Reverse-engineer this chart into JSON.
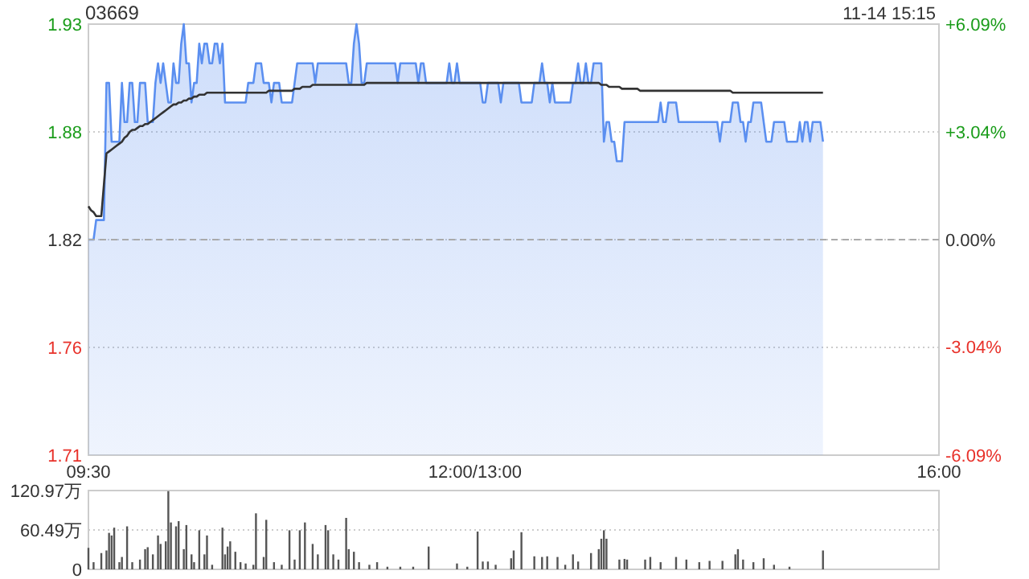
{
  "chart_data": [
    {
      "type": "area",
      "title": "03669",
      "annotations": [
        "11-14 15:15"
      ],
      "categories": [
        "09:30",
        null,
        null,
        null,
        null,
        null,
        null,
        null,
        null,
        null,
        null,
        null,
        null,
        null,
        null,
        null,
        null,
        null,
        null,
        null,
        null,
        null,
        null,
        null,
        null,
        null,
        null,
        null,
        null,
        null,
        null,
        null,
        null,
        null,
        null,
        null,
        null,
        null,
        null,
        null,
        null,
        null,
        null,
        null,
        null,
        null,
        null,
        null,
        null,
        null,
        null,
        null,
        null,
        null,
        null,
        null,
        null,
        null,
        null,
        null,
        null,
        null,
        null,
        null,
        null,
        null,
        null,
        null,
        null,
        null,
        null,
        null,
        null,
        null,
        null,
        null,
        null,
        null,
        null,
        null,
        null,
        null,
        null,
        null,
        null,
        null,
        null,
        null,
        null,
        null,
        null,
        null,
        null,
        null,
        null,
        null,
        null,
        null,
        null,
        null,
        null,
        null,
        null,
        null,
        null,
        null,
        null,
        null,
        null,
        null,
        null,
        null,
        null,
        null,
        null,
        null,
        null,
        null,
        null,
        null,
        null,
        null,
        null,
        null,
        null,
        null,
        null,
        null,
        null,
        null,
        null,
        null,
        null,
        null,
        null,
        null,
        null,
        null,
        null,
        null,
        null,
        null,
        null,
        null,
        null,
        null,
        null,
        null,
        null,
        null,
        "12:00/13:00",
        null,
        null,
        null,
        null,
        null,
        null,
        null,
        null,
        null,
        null,
        null,
        null,
        null,
        null,
        null,
        null,
        null,
        null,
        null,
        null,
        null,
        null,
        null,
        null,
        null,
        null,
        null,
        null,
        null,
        null,
        null,
        null,
        null,
        null,
        null,
        null,
        null,
        null,
        null,
        null,
        null,
        null,
        null,
        null,
        null,
        null,
        null,
        null,
        null,
        null,
        null,
        null,
        null,
        null,
        null,
        null,
        null,
        null,
        null,
        null,
        null,
        null,
        null,
        null,
        null,
        null,
        null,
        null,
        null,
        null,
        null,
        null,
        null,
        null,
        null,
        null,
        null,
        null,
        null,
        null,
        null,
        null,
        null,
        null,
        null,
        null,
        null,
        null,
        null,
        null,
        null,
        null,
        null,
        null,
        null,
        null,
        null,
        null,
        null,
        null,
        null,
        null,
        null,
        null,
        null,
        null,
        null,
        null,
        null,
        null,
        null,
        null,
        null,
        null,
        null,
        null,
        null,
        null,
        null,
        null,
        null,
        null,
        null,
        null,
        null,
        null,
        null,
        null,
        null,
        null,
        null,
        null,
        null,
        null,
        null,
        null,
        null,
        null,
        null,
        null,
        null,
        null,
        null,
        null,
        null,
        null,
        null,
        null,
        null,
        null,
        null,
        null,
        null,
        null,
        null,
        null,
        null,
        null,
        null,
        null,
        null,
        null,
        null,
        null,
        null,
        null,
        null,
        null,
        null,
        null,
        null,
        null,
        null,
        null,
        null,
        null,
        null,
        null,
        null,
        "16:00"
      ],
      "ylim": [
        1.71,
        1.93
      ],
      "yticks": [
        {
          "value": 1.71,
          "label": "1.71"
        },
        {
          "value": 1.765,
          "label": "1.76"
        },
        {
          "value": 1.82,
          "label": "1.82"
        },
        {
          "value": 1.875,
          "label": "1.88"
        },
        {
          "value": 1.93,
          "label": "1.93"
        }
      ],
      "y2lim": [
        -6.09,
        6.09
      ],
      "y2ticks": [
        {
          "value": -6.09,
          "label": "-6.09%"
        },
        {
          "value": -3.04,
          "label": "-3.04%"
        },
        {
          "value": 0,
          "label": "0.00%"
        },
        {
          "value": 3.04,
          "label": "+3.04%"
        },
        {
          "value": 6.09,
          "label": "+6.09%"
        }
      ],
      "grid": "y",
      "ref_lines": [
        {
          "axis": "y",
          "value": 1.82,
          "line_style": "dashed",
          "color": "#aaaaaa"
        }
      ],
      "series": [
        {
          "color": "#5b8ff0",
          "values": [
            1.82,
            1.82,
            1.82,
            1.83,
            1.83,
            1.83,
            1.83,
            1.9,
            1.9,
            1.87,
            1.87,
            1.87,
            1.87,
            1.9,
            1.88,
            1.88,
            1.9,
            1.9,
            1.88,
            1.88,
            1.9,
            1.9,
            1.9,
            1.88,
            1.88,
            1.88,
            1.9,
            1.91,
            1.9,
            1.91,
            1.9,
            1.89,
            1.89,
            1.91,
            1.9,
            1.9,
            1.92,
            1.93,
            1.91,
            1.91,
            1.89,
            1.9,
            1.9,
            1.92,
            1.91,
            1.92,
            1.92,
            1.91,
            1.91,
            1.92,
            1.92,
            1.91,
            1.92,
            1.89,
            1.89,
            1.89,
            1.89,
            1.89,
            1.89,
            1.89,
            1.89,
            1.89,
            1.9,
            1.9,
            1.9,
            1.91,
            1.91,
            1.91,
            1.9,
            1.9,
            1.9,
            1.89,
            1.9,
            1.9,
            1.9,
            1.89,
            1.89,
            1.89,
            1.89,
            1.89,
            1.9,
            1.91,
            1.91,
            1.91,
            1.91,
            1.91,
            1.91,
            1.91,
            1.9,
            1.91,
            1.91,
            1.91,
            1.91,
            1.91,
            1.91,
            1.91,
            1.91,
            1.91,
            1.91,
            1.91,
            1.91,
            1.9,
            1.9,
            1.92,
            1.93,
            1.92,
            1.9,
            1.9,
            1.91,
            1.91,
            1.91,
            1.91,
            1.91,
            1.91,
            1.91,
            1.91,
            1.91,
            1.91,
            1.91,
            1.91,
            1.9,
            1.91,
            1.91,
            1.91,
            1.91,
            1.91,
            1.91,
            1.91,
            1.9,
            1.91,
            1.91,
            1.9,
            1.9,
            1.9,
            1.9,
            1.9,
            1.9,
            1.9,
            1.9,
            1.9,
            1.91,
            1.9,
            1.9,
            1.91,
            1.9,
            1.9,
            1.9,
            1.9,
            1.9,
            1.9,
            1.9,
            1.9,
            1.9,
            1.89,
            1.89,
            1.9,
            1.9,
            1.9,
            1.9,
            1.9,
            1.89,
            1.9,
            1.9,
            1.9,
            1.9,
            1.9,
            1.9,
            1.9,
            1.89,
            1.89,
            1.89,
            1.89,
            1.89,
            1.9,
            1.9,
            1.9,
            1.91,
            1.9,
            1.9,
            1.89,
            1.9,
            1.89,
            1.89,
            1.89,
            1.89,
            1.89,
            1.89,
            1.89,
            1.9,
            1.9,
            1.91,
            1.9,
            1.9,
            1.91,
            1.9,
            1.9,
            1.91,
            1.91,
            1.91,
            1.91,
            1.87,
            1.88,
            1.88,
            1.87,
            1.87,
            1.86,
            1.86,
            1.86,
            1.88,
            1.88,
            1.88,
            1.88,
            1.88,
            1.88,
            1.88,
            1.88,
            1.88,
            1.88,
            1.88,
            1.88,
            1.88,
            1.88,
            1.89,
            1.88,
            1.88,
            1.89,
            1.89,
            1.89,
            1.89,
            1.88,
            1.88,
            1.88,
            1.88,
            1.88,
            1.88,
            1.88,
            1.88,
            1.88,
            1.88,
            1.88,
            1.88,
            1.88,
            1.88,
            1.88,
            1.88,
            1.87,
            1.88,
            1.88,
            1.88,
            1.88,
            1.89,
            1.89,
            1.89,
            1.88,
            1.88,
            1.87,
            1.88,
            1.88,
            1.89,
            1.89,
            1.89,
            1.89,
            1.88,
            1.87,
            1.87,
            1.87,
            1.88,
            1.88,
            1.88,
            1.88,
            1.88,
            1.87,
            1.87,
            1.87,
            1.87,
            1.87,
            1.88,
            1.87,
            1.88,
            1.88,
            1.87,
            1.88,
            1.88,
            1.88,
            1.88,
            1.87,
            null,
            null,
            null,
            null,
            null,
            null,
            null,
            null,
            null,
            null,
            null,
            null,
            null,
            null,
            null,
            null,
            null,
            null,
            null,
            null,
            null,
            null,
            null,
            null,
            null,
            null,
            null,
            null,
            null,
            null,
            null,
            null,
            null,
            null,
            null,
            null,
            null,
            null,
            null,
            null,
            null,
            null,
            null,
            null,
            null
          ]
        },
        {
          "type": "line",
          "color": "#333333",
          "values": [
            1.837,
            1.835,
            1.834,
            1.832,
            1.832,
            1.832,
            1.848,
            1.864,
            1.865,
            1.866,
            1.867,
            1.868,
            1.869,
            1.87,
            1.872,
            1.873,
            1.875,
            1.876,
            1.876,
            1.877,
            1.878,
            1.878,
            1.879,
            1.879,
            1.88,
            1.881,
            1.882,
            1.883,
            1.884,
            1.885,
            1.886,
            1.887,
            1.888,
            1.889,
            1.889,
            1.89,
            1.89,
            1.891,
            1.891,
            1.892,
            1.892,
            1.893,
            1.893,
            1.894,
            1.894,
            1.894,
            1.895,
            1.895,
            1.895,
            1.895,
            1.895,
            1.895,
            1.895,
            1.895,
            1.895,
            1.895,
            1.895,
            1.895,
            1.895,
            1.895,
            1.895,
            1.895,
            1.895,
            1.895,
            1.895,
            1.895,
            1.895,
            1.895,
            1.895,
            1.895,
            1.896,
            1.896,
            1.896,
            1.896,
            1.896,
            1.896,
            1.896,
            1.896,
            1.896,
            1.896,
            1.897,
            1.897,
            1.897,
            1.898,
            1.898,
            1.898,
            1.898,
            1.899,
            1.899,
            1.899,
            1.899,
            1.899,
            1.899,
            1.899,
            1.899,
            1.899,
            1.899,
            1.899,
            1.899,
            1.899,
            1.899,
            1.899,
            1.899,
            1.899,
            1.899,
            1.899,
            1.899,
            1.899,
            1.9,
            1.9,
            1.9,
            1.9,
            1.9,
            1.9,
            1.9,
            1.9,
            1.9,
            1.9,
            1.9,
            1.9,
            1.9,
            1.9,
            1.9,
            1.9,
            1.9,
            1.9,
            1.9,
            1.9,
            1.9,
            1.9,
            1.9,
            1.9,
            1.9,
            1.9,
            1.9,
            1.9,
            1.9,
            1.9,
            1.9,
            1.9,
            1.9,
            1.9,
            1.9,
            1.9,
            1.9,
            1.9,
            1.9,
            1.9,
            1.9,
            1.9,
            1.9,
            1.9,
            1.9,
            1.9,
            1.9,
            1.9,
            1.9,
            1.9,
            1.9,
            1.9,
            1.9,
            1.9,
            1.9,
            1.9,
            1.9,
            1.9,
            1.9,
            1.9,
            1.9,
            1.9,
            1.9,
            1.9,
            1.9,
            1.9,
            1.9,
            1.9,
            1.9,
            1.9,
            1.9,
            1.9,
            1.9,
            1.9,
            1.9,
            1.9,
            1.9,
            1.9,
            1.9,
            1.9,
            1.9,
            1.9,
            1.9,
            1.9,
            1.9,
            1.9,
            1.9,
            1.9,
            1.9,
            1.9,
            1.9,
            1.899,
            1.899,
            1.899,
            1.898,
            1.898,
            1.898,
            1.898,
            1.898,
            1.897,
            1.897,
            1.897,
            1.897,
            1.897,
            1.897,
            1.897,
            1.896,
            1.896,
            1.896,
            1.896,
            1.896,
            1.896,
            1.896,
            1.896,
            1.896,
            1.896,
            1.896,
            1.896,
            1.896,
            1.896,
            1.896,
            1.896,
            1.896,
            1.896,
            1.896,
            1.896,
            1.896,
            1.896,
            1.896,
            1.896,
            1.896,
            1.896,
            1.896,
            1.896,
            1.896,
            1.896,
            1.896,
            1.896,
            1.896,
            1.896,
            1.896,
            1.896,
            1.895,
            1.895,
            1.895,
            1.895,
            1.895,
            1.895,
            1.895,
            1.895,
            1.895,
            1.895,
            1.895,
            1.895,
            1.895,
            1.895,
            1.895,
            1.895,
            1.895,
            1.895,
            1.895,
            1.895,
            1.895,
            1.895,
            1.895,
            1.895,
            1.895,
            1.895,
            1.895,
            1.895,
            1.895,
            1.895,
            1.895,
            1.895,
            1.895,
            1.895,
            1.895,
            1.895,
            null,
            null,
            null,
            null,
            null,
            null,
            null,
            null,
            null,
            null,
            null,
            null,
            null,
            null,
            null,
            null,
            null,
            null,
            null,
            null,
            null,
            null,
            null,
            null,
            null,
            null,
            null,
            null,
            null,
            null,
            null,
            null,
            null,
            null,
            null,
            null,
            null,
            null,
            null,
            null,
            null,
            null,
            null,
            null,
            null
          ]
        }
      ]
    },
    {
      "type": "bar",
      "color": "#555555",
      "tick_labels": "y",
      "grid": "y",
      "categories": [
        null,
        null,
        null,
        null,
        null,
        null,
        null,
        null,
        null,
        null,
        null,
        null,
        null,
        null,
        null,
        null,
        null,
        null,
        null,
        null,
        null,
        null,
        null,
        null,
        null,
        null,
        null,
        null,
        null,
        null,
        null,
        null,
        null,
        null,
        null,
        null,
        null,
        null,
        null,
        null,
        null,
        null,
        null,
        null,
        null,
        null,
        null,
        null,
        null,
        null,
        null,
        null,
        null,
        null,
        null,
        null,
        null,
        null,
        null,
        null,
        null,
        null,
        null,
        null,
        null,
        null,
        null,
        null,
        null,
        null,
        null,
        null,
        null,
        null,
        null,
        null,
        null,
        null,
        null,
        null,
        null,
        null,
        null,
        null,
        null,
        null,
        null,
        null,
        null,
        null,
        null,
        null,
        null,
        null,
        null,
        null,
        null,
        null,
        null,
        null,
        null,
        null,
        null,
        null,
        null,
        null,
        null,
        null,
        null,
        null,
        null,
        null,
        null,
        null,
        null,
        null,
        null,
        null,
        null,
        null,
        null,
        null,
        null,
        null,
        null,
        null,
        null,
        null,
        null,
        null,
        null,
        null,
        null,
        null,
        null,
        null,
        null,
        null,
        null,
        null,
        null,
        null,
        null,
        null,
        null,
        null,
        null,
        null,
        null,
        null,
        null,
        null,
        null,
        null,
        null,
        null,
        null,
        null,
        null,
        null,
        null,
        null,
        null,
        null,
        null,
        null,
        null,
        null,
        null,
        null,
        null,
        null,
        null,
        null,
        null,
        null,
        null,
        null,
        null,
        null,
        null,
        null,
        null,
        null,
        null,
        null,
        null,
        null,
        null,
        null,
        null,
        null,
        null,
        null,
        null,
        null,
        null,
        null,
        null,
        null,
        null,
        null,
        null,
        null,
        null,
        null,
        null,
        null,
        null,
        null,
        null,
        null,
        null,
        null,
        null,
        null,
        null,
        null,
        null,
        null,
        null,
        null,
        null,
        null,
        null,
        null,
        null,
        null,
        null,
        null,
        null,
        null,
        null,
        null,
        null,
        null,
        null,
        null,
        null,
        null,
        null,
        null,
        null,
        null,
        null,
        null,
        null,
        null,
        null,
        null,
        null,
        null,
        null,
        null,
        null,
        null,
        null,
        null,
        null,
        null,
        null,
        null,
        null,
        null,
        null,
        null,
        null,
        null,
        null,
        null,
        null,
        null,
        null,
        null,
        null,
        null,
        null,
        null,
        null,
        null,
        null,
        null,
        null,
        null,
        null,
        null,
        null,
        null,
        null,
        null,
        null,
        null,
        null,
        null,
        null,
        null,
        null,
        null,
        null,
        null,
        null,
        null,
        null,
        null,
        null,
        null,
        null,
        null,
        null,
        null,
        null,
        null,
        null,
        null,
        null,
        null,
        null,
        null,
        null,
        null,
        null,
        null,
        null,
        null,
        null,
        null,
        null,
        null,
        null,
        null,
        null
      ],
      "ylim": [
        0,
        120.97
      ],
      "yticks": [
        0,
        {
          "value": 60.49,
          "label": "60.49万"
        },
        {
          "value": 120.97,
          "label": "120.97万"
        }
      ],
      "values": [
        33,
        null,
        11,
        null,
        null,
        25,
        null,
        29,
        56,
        52,
        64,
        null,
        11,
        19,
        null,
        66,
        null,
        11,
        null,
        null,
        15,
        null,
        31,
        34,
        null,
        23,
        null,
        52,
        39,
        null,
        43,
        120,
        72,
        null,
        66,
        74,
        null,
        31,
        68,
        null,
        23,
        11,
        null,
        60,
        null,
        23,
        52,
        null,
        7,
        null,
        null,
        null,
        64,
        23,
        35,
        43,
        null,
        27,
        null,
        11,
        null,
        9,
        null,
        null,
        7,
        86,
        null,
        null,
        19,
        76,
        null,
        null,
        11,
        null,
        null,
        7,
        null,
        null,
        60,
        null,
        15,
        null,
        60,
        null,
        72,
        null,
        null,
        39,
        null,
        23,
        null,
        null,
        68,
        60,
        null,
        23,
        null,
        15,
        null,
        null,
        79,
        31,
        null,
        27,
        null,
        11,
        null,
        null,
        null,
        7,
        null,
        null,
        11,
        null,
        null,
        null,
        4,
        null,
        null,
        null,
        null,
        4,
        null,
        null,
        null,
        null,
        4,
        null,
        null,
        null,
        null,
        null,
        35,
        null,
        null,
        null,
        null,
        null,
        null,
        null,
        null,
        null,
        null,
        9,
        null,
        null,
        null,
        4,
        null,
        null,
        null,
        58,
        null,
        12,
        null,
        12,
        null,
        null,
        7,
        null,
        null,
        null,
        null,
        null,
        17,
        29,
        null,
        null,
        57,
        null,
        null,
        null,
        null,
        20,
        null,
        null,
        19,
        null,
        20,
        null,
        null,
        null,
        19,
        null,
        null,
        7,
        null,
        null,
        23,
        null,
        12,
        null,
        null,
        null,
        null,
        25,
        null,
        null,
        31,
        47,
        60,
        47,
        null,
        null,
        null,
        null,
        15,
        null,
        16,
        15,
        null,
        null,
        null,
        null,
        null,
        null,
        15,
        null,
        19,
        null,
        null,
        null,
        11,
        null,
        null,
        null,
        null,
        null,
        19,
        null,
        null,
        null,
        15,
        null,
        null,
        null,
        null,
        11,
        null,
        null,
        null,
        13,
        null,
        null,
        null,
        null,
        13,
        null,
        null,
        null,
        null,
        23,
        31,
        null,
        15,
        null,
        null,
        null,
        11,
        null,
        null,
        null,
        17,
        null,
        null,
        null,
        7,
        null,
        null,
        null,
        null,
        null,
        4,
        null,
        null,
        null,
        null,
        null,
        null,
        null,
        null,
        null,
        null,
        null,
        null,
        29,
        null,
        null,
        null,
        null,
        null,
        null,
        null,
        null,
        null,
        null,
        null,
        null,
        null,
        null,
        null,
        null,
        null,
        null,
        null,
        null,
        null,
        null,
        null,
        null,
        null,
        null,
        null,
        null,
        null,
        null,
        null,
        null,
        null,
        null,
        null,
        null,
        null,
        null,
        null,
        null,
        null,
        null,
        null,
        null,
        null
      ]
    }
  ]
}
